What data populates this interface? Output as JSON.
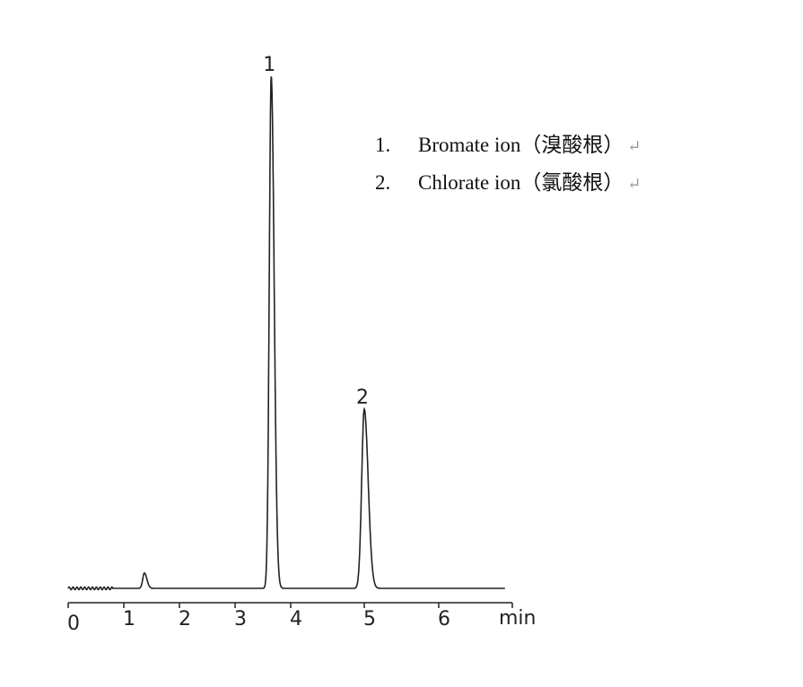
{
  "chart_data": {
    "type": "line",
    "xlabel": "min",
    "xlim": [
      0,
      7
    ],
    "x_ticks": [
      "0",
      "1",
      "2",
      "3",
      "4",
      "5",
      "6"
    ],
    "y_unit": "relative response (baseline 0, tallest peak 100)",
    "grid": false,
    "peaks": [
      {
        "label": "1",
        "retention_time": 3.65,
        "height": 100,
        "width_sigma": 0.035
      },
      {
        "label": "2",
        "retention_time": 5.0,
        "height": 35,
        "width_sigma": 0.035
      },
      {
        "label": "",
        "retention_time": 1.37,
        "height": 3,
        "width_sigma": 0.03
      }
    ],
    "trace_end": 6.9
  },
  "legend": {
    "items": [
      {
        "num": "1.",
        "text": "Bromate ion（溴酸根）",
        "mark": "↵"
      },
      {
        "num": "2.",
        "text": "Chlorate ion（氯酸根）",
        "mark": "↵"
      }
    ]
  }
}
